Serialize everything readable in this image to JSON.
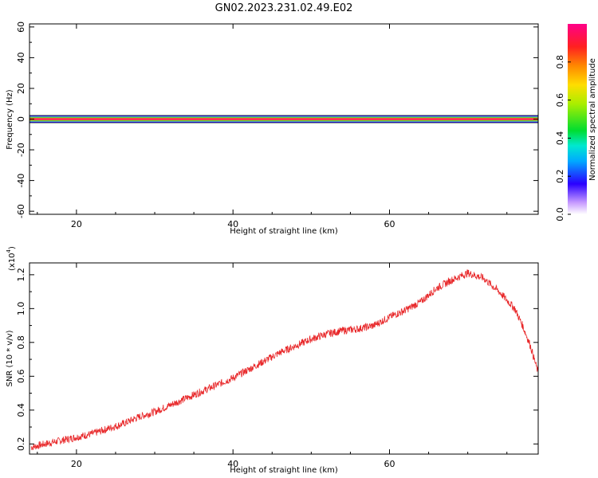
{
  "title": "GN02.2023.231.02.49.E02",
  "chart_data": [
    {
      "type": "heatmap",
      "xlabel": "Height of straight line (km)",
      "ylabel": "Frequency (Hz)",
      "xlim": [
        14,
        79
      ],
      "ylim": [
        -62,
        62
      ],
      "xticks": [
        20,
        40,
        60
      ],
      "yticks": [
        -60,
        -40,
        -20,
        0,
        20,
        40,
        60
      ],
      "colorbar": {
        "label": "Normalized spectral amplitude",
        "ticks": [
          "0.0",
          "0.2",
          "0.4",
          "0.6",
          "0.8"
        ],
        "range": [
          0,
          1
        ]
      },
      "bands": [
        {
          "frequency": 0,
          "amplitude": 1.0
        },
        {
          "frequency": 0.6,
          "amplitude": 0.85
        },
        {
          "frequency": -0.6,
          "amplitude": 0.85
        },
        {
          "frequency": 1.2,
          "amplitude": 0.45
        },
        {
          "frequency": -1.2,
          "amplitude": 0.45
        },
        {
          "frequency": 2.0,
          "amplitude": 0.18
        },
        {
          "frequency": -2.0,
          "amplitude": 0.18
        }
      ]
    },
    {
      "type": "line",
      "xlabel": "Height of straight line (km)",
      "ylabel": "SNR (10 * v/v)",
      "multiplier": "(x10",
      "multiplier_exp": "4",
      "multiplier_close": ")",
      "xlim": [
        14,
        79
      ],
      "ylim": [
        0.14,
        1.27
      ],
      "xticks": [
        20,
        40,
        60
      ],
      "yticks": [
        0.2,
        0.4,
        0.6,
        0.8,
        1.0,
        1.2
      ],
      "ytick_labels": [
        "0.2",
        "0.4",
        "0.6",
        "0.8",
        "1.0",
        "1.2"
      ],
      "series": [
        {
          "color": "#e8282a",
          "x": [
            14.2,
            16,
            18,
            20,
            22,
            24,
            26,
            28,
            30,
            32,
            34,
            36,
            38,
            40,
            42,
            44,
            46,
            48,
            50,
            52,
            54,
            56,
            58,
            60,
            62,
            64,
            66,
            68,
            70,
            72,
            74,
            76,
            77,
            78,
            79
          ],
          "y": [
            0.18,
            0.2,
            0.22,
            0.24,
            0.26,
            0.29,
            0.32,
            0.36,
            0.39,
            0.43,
            0.47,
            0.51,
            0.55,
            0.59,
            0.64,
            0.69,
            0.74,
            0.78,
            0.82,
            0.85,
            0.87,
            0.88,
            0.9,
            0.95,
            0.99,
            1.04,
            1.12,
            1.17,
            1.21,
            1.18,
            1.1,
            1.0,
            0.9,
            0.78,
            0.62
          ]
        }
      ]
    }
  ]
}
